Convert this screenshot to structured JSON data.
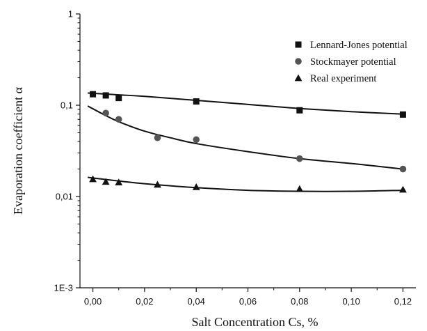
{
  "chart_data": {
    "type": "scatter",
    "title": "",
    "xlabel": "Salt Concentration Cs, %",
    "ylabel": "Evaporation coefficient α",
    "xlim": [
      -0.005,
      0.125
    ],
    "ylim": [
      0.001,
      1
    ],
    "yscale": "log",
    "grid": false,
    "legend": "top-right",
    "xticks": [
      0.0,
      0.02,
      0.04,
      0.06,
      0.08,
      0.1,
      0.12
    ],
    "xtick_labels": [
      "0,00",
      "0,02",
      "0,04",
      "0,06",
      "0,08",
      "0,10",
      "0,12"
    ],
    "yticks": [
      0.001,
      0.01,
      0.1,
      1
    ],
    "ytick_labels": [
      "1E-3",
      "0,01",
      "0,1",
      "1"
    ],
    "series": [
      {
        "name": "Lennard-Jones potential",
        "marker": "square",
        "color": "#111111",
        "x": [
          0.0,
          0.005,
          0.01,
          0.04,
          0.08,
          0.12
        ],
        "y": [
          0.132,
          0.128,
          0.12,
          0.11,
          0.088,
          0.079
        ],
        "fit_x": [
          -0.002,
          0.01,
          0.02,
          0.04,
          0.06,
          0.08,
          0.1,
          0.12
        ],
        "fit_y": [
          0.136,
          0.13,
          0.125,
          0.113,
          0.102,
          0.092,
          0.085,
          0.08
        ]
      },
      {
        "name": "Stockmayer potential",
        "marker": "circle",
        "color": "#555555",
        "x": [
          0.005,
          0.01,
          0.025,
          0.04,
          0.08,
          0.12
        ],
        "y": [
          0.082,
          0.07,
          0.044,
          0.042,
          0.026,
          0.02
        ],
        "fit_x": [
          -0.002,
          0.005,
          0.01,
          0.02,
          0.03,
          0.04,
          0.06,
          0.08,
          0.1,
          0.12
        ],
        "fit_y": [
          0.098,
          0.077,
          0.066,
          0.052,
          0.044,
          0.038,
          0.031,
          0.026,
          0.023,
          0.02
        ]
      },
      {
        "name": "Real experiment",
        "marker": "triangle",
        "color": "#111111",
        "x": [
          0.0,
          0.005,
          0.01,
          0.025,
          0.04,
          0.08,
          0.12
        ],
        "y": [
          0.0155,
          0.0145,
          0.0143,
          0.0135,
          0.0127,
          0.0121,
          0.0119
        ],
        "fit_x": [
          -0.002,
          0.01,
          0.02,
          0.04,
          0.06,
          0.08,
          0.1,
          0.12
        ],
        "fit_y": [
          0.0162,
          0.0148,
          0.0138,
          0.0125,
          0.0117,
          0.0114,
          0.0114,
          0.0117
        ]
      }
    ]
  }
}
